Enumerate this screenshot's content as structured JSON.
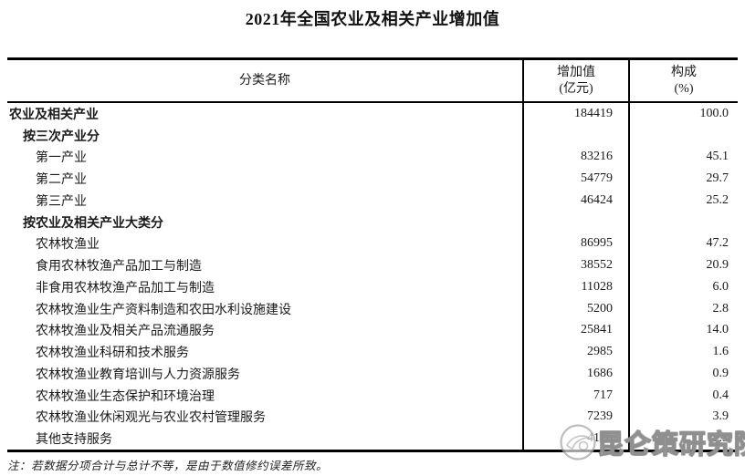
{
  "title": "2021年全国农业及相关产业增加值",
  "table": {
    "headers": {
      "category": "分类名称",
      "value_line1": "增加值",
      "value_line2": "(亿元)",
      "share_line1": "构成",
      "share_line2": "(%)"
    },
    "rows": [
      {
        "name": "农业及相关产业",
        "value": "184419",
        "share": "100.0",
        "indent": 0,
        "bold": true
      },
      {
        "name": "按三次产业分",
        "value": "",
        "share": "",
        "indent": 1,
        "bold": true
      },
      {
        "name": "第一产业",
        "value": "83216",
        "share": "45.1",
        "indent": 2,
        "bold": false
      },
      {
        "name": "第二产业",
        "value": "54779",
        "share": "29.7",
        "indent": 2,
        "bold": false
      },
      {
        "name": "第三产业",
        "value": "46424",
        "share": "25.2",
        "indent": 2,
        "bold": false
      },
      {
        "name": "按农业及相关产业大类分",
        "value": "",
        "share": "",
        "indent": 1,
        "bold": true
      },
      {
        "name": "农林牧渔业",
        "value": "86995",
        "share": "47.2",
        "indent": 2,
        "bold": false
      },
      {
        "name": "食用农林牧渔产品加工与制造",
        "value": "38552",
        "share": "20.9",
        "indent": 2,
        "bold": false
      },
      {
        "name": "非食用农林牧渔产品加工与制造",
        "value": "11028",
        "share": "6.0",
        "indent": 2,
        "bold": false
      },
      {
        "name": "农林牧渔业生产资料制造和农田水利设施建设",
        "value": "5200",
        "share": "2.8",
        "indent": 2,
        "bold": false
      },
      {
        "name": "农林牧渔业及相关产品流通服务",
        "value": "25841",
        "share": "14.0",
        "indent": 2,
        "bold": false
      },
      {
        "name": "农林牧渔业科研和技术服务",
        "value": "2985",
        "share": "1.6",
        "indent": 2,
        "bold": false
      },
      {
        "name": "农林牧渔业教育培训与人力资源服务",
        "value": "1686",
        "share": "0.9",
        "indent": 2,
        "bold": false
      },
      {
        "name": "农林牧渔业生态保护和环境治理",
        "value": "717",
        "share": "0.4",
        "indent": 2,
        "bold": false
      },
      {
        "name": "农林牧渔业休闲观光与农业农村管理服务",
        "value": "7239",
        "share": "3.9",
        "indent": 2,
        "bold": false
      },
      {
        "name": "其他支持服务",
        "value": "4176",
        "share": "2.3",
        "indent": 2,
        "bold": false
      }
    ]
  },
  "note": "注：若数据分项合计与总计不等，是由于数值修约误差所致。",
  "watermark": {
    "text": "昆仑策研究院",
    "logo": "kunlun-logo-icon"
  },
  "colors": {
    "background": "#ffffff",
    "text": "#1a1a1a",
    "border": "#000000",
    "watermark": "#8f8f8f"
  }
}
